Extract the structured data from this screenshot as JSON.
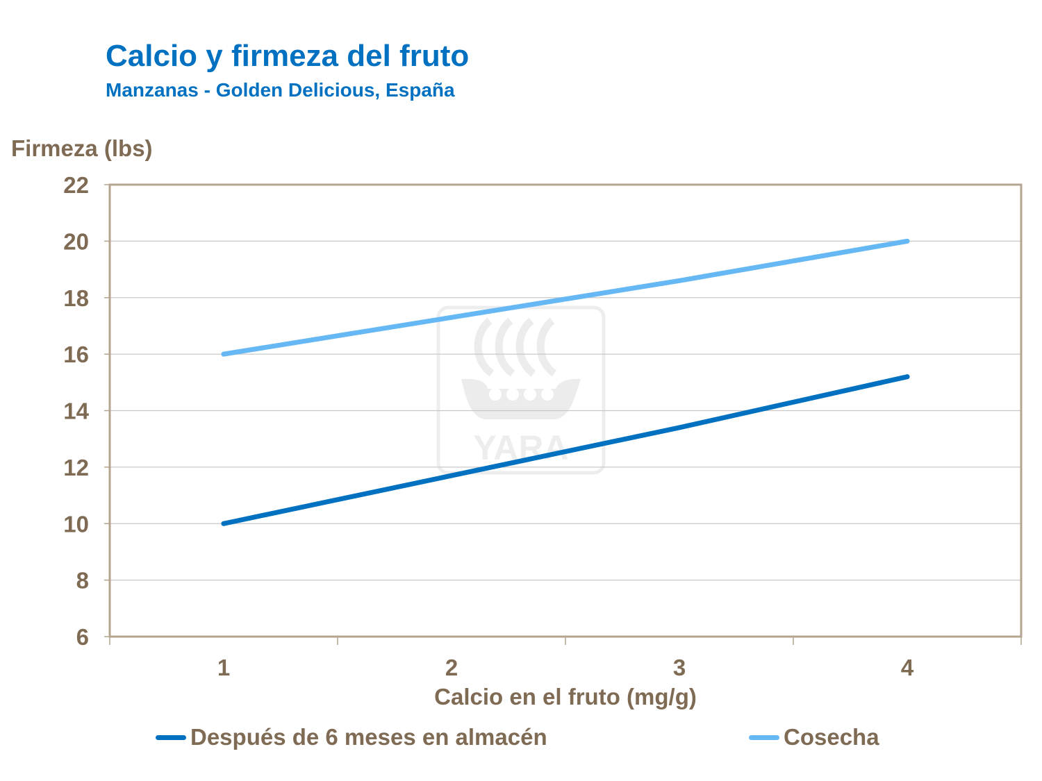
{
  "title": "Calcio y firmeza del fruto",
  "subtitle": "Manzanas - Golden Delicious, España",
  "watermark_logo_text": "YARA",
  "chart_data": {
    "type": "line",
    "xlabel": "Calcio en el fruto (mg/g)",
    "ylabel": "Firmeza (lbs)",
    "x": [
      1,
      2,
      3,
      4
    ],
    "xlim": [
      0.5,
      4.5
    ],
    "ylim": [
      6,
      22
    ],
    "yticks": [
      6,
      8,
      10,
      12,
      14,
      16,
      18,
      20,
      22
    ],
    "grid": true,
    "legend_position": "bottom",
    "series": [
      {
        "name": "Después de 6 meses en almacén",
        "values": [
          10,
          11.7,
          13.4,
          15.2
        ],
        "color": "#0070c0"
      },
      {
        "name": "Cosecha",
        "values": [
          16,
          17.3,
          18.6,
          20
        ],
        "color": "#66b8f5"
      }
    ]
  }
}
